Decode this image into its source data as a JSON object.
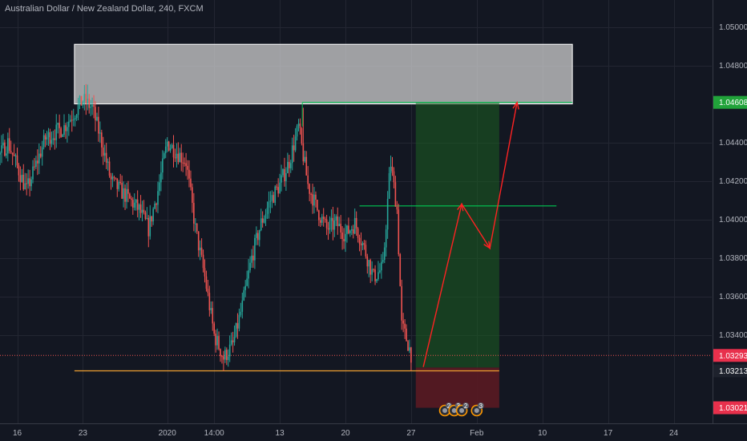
{
  "title": "Australian Dollar / New Zealand Dollar, 240, FXCM",
  "colors": {
    "background": "#131722",
    "grid": "#232632",
    "text": "#b2b5be",
    "bull": "#26a69a",
    "bear": "#ef5350",
    "resistance_zone": "#d5d5d5",
    "profit_zone": "#1b5e20",
    "loss_zone": "#5a1a22",
    "green_line": "#00c853",
    "support_line": "#f0a030",
    "projection": "#ff2222",
    "badge_red": "#e8304c",
    "badge_green": "#21a33a",
    "badge_dark": "#1e222d"
  },
  "icons": {
    "event": "economic-event-icon"
  },
  "chart_data": {
    "type": "candlestick",
    "symbol": "Australian Dollar / New Zealand Dollar",
    "timeframe": "240",
    "source": "FXCM",
    "ylim": [
      1.0294,
      1.0514
    ],
    "y_ticks": [
      1.034,
      1.036,
      1.038,
      1.04,
      1.042,
      1.044,
      1.048,
      1.05
    ],
    "x_ticks": [
      {
        "label": "16",
        "day": 16
      },
      {
        "label": "23",
        "day": 23
      },
      {
        "label": "2020",
        "day": 32
      },
      {
        "label": "14:00",
        "day": 37
      },
      {
        "label": "13",
        "day": 44
      },
      {
        "label": "20",
        "day": 51
      },
      {
        "label": "27",
        "day": 58
      },
      {
        "label": "Feb",
        "day": 65
      },
      {
        "label": "10",
        "day": 72
      },
      {
        "label": "17",
        "day": 79
      },
      {
        "label": "24",
        "day": 86
      }
    ],
    "price_badges": [
      {
        "label": "1.04608",
        "value": 1.04608,
        "kind": "green"
      },
      {
        "label": "1.03293",
        "value": 1.03293,
        "kind": "red"
      },
      {
        "label": "1.03213",
        "value": 1.03213,
        "kind": "dark"
      },
      {
        "label": "1.03021",
        "value": 1.03021,
        "kind": "red"
      }
    ],
    "path": [
      [
        9,
        1.047
      ],
      [
        11,
        1.043
      ],
      [
        13,
        1.0425
      ],
      [
        15,
        1.044
      ],
      [
        17,
        1.0415
      ],
      [
        19,
        1.0442
      ],
      [
        21,
        1.0448
      ],
      [
        23,
        1.0462
      ],
      [
        24,
        1.0458
      ],
      [
        25,
        1.044
      ],
      [
        26,
        1.042
      ],
      [
        27,
        1.0415
      ],
      [
        28,
        1.041
      ],
      [
        29,
        1.0405
      ],
      [
        30,
        1.0395
      ],
      [
        31,
        1.0415
      ],
      [
        32,
        1.044
      ],
      [
        33,
        1.0435
      ],
      [
        34,
        1.043
      ],
      [
        35,
        1.0395
      ],
      [
        36,
        1.037
      ],
      [
        37,
        1.034
      ],
      [
        38,
        1.0328
      ],
      [
        39,
        1.0335
      ],
      [
        40,
        1.0355
      ],
      [
        41,
        1.038
      ],
      [
        42,
        1.0398
      ],
      [
        43,
        1.041
      ],
      [
        44,
        1.0418
      ],
      [
        45,
        1.043
      ],
      [
        46,
        1.0448
      ],
      [
        47,
        1.0418
      ],
      [
        48,
        1.0405
      ],
      [
        49,
        1.0395
      ],
      [
        50,
        1.0398
      ],
      [
        51,
        1.0392
      ],
      [
        52,
        1.0398
      ],
      [
        53,
        1.0385
      ],
      [
        54,
        1.037
      ],
      [
        55,
        1.0375
      ],
      [
        55.8,
        1.043
      ],
      [
        56.5,
        1.0405
      ],
      [
        57,
        1.0345
      ],
      [
        57.7,
        1.0335
      ],
      [
        58,
        1.033
      ]
    ],
    "extreme_wicks": [
      {
        "day": 9,
        "high": 1.0488
      },
      {
        "day": 11,
        "low": 1.0368
      },
      {
        "day": 23.5,
        "high": 1.047
      },
      {
        "day": 38,
        "low": 1.03213
      },
      {
        "day": 46.5,
        "high": 1.0458
      },
      {
        "day": 55.8,
        "high": 1.0432
      }
    ],
    "levels": {
      "resistance_zone": {
        "start_day": 22.1,
        "end_day": 75.2,
        "low": 1.046,
        "high": 1.0491
      },
      "upper_green": {
        "start_day": 46.4,
        "end_day": 75.2,
        "value": 1.04608
      },
      "mid_green": {
        "start_day": 52.5,
        "end_day": 73.5,
        "value": 1.0407
      },
      "support": {
        "start_day": 22.1,
        "end_day": 67.4,
        "value": 1.03213
      },
      "current_dotted": {
        "value": 1.03293
      },
      "long_position": {
        "start_day": 58.5,
        "end_day": 67.4,
        "entry": 1.0323,
        "target": 1.04608,
        "stop": 1.03021
      }
    },
    "projection": [
      [
        59.3,
        1.03233
      ],
      [
        63.4,
        1.0408
      ],
      [
        66.4,
        1.0385
      ],
      [
        69.3,
        1.04608
      ]
    ],
    "events": [
      {
        "day": 61.6,
        "count": "2"
      },
      {
        "day": 62.6,
        "count": "3"
      },
      {
        "day": 63.4,
        "count": "2"
      },
      {
        "day": 65.0,
        "count": "3"
      }
    ]
  }
}
